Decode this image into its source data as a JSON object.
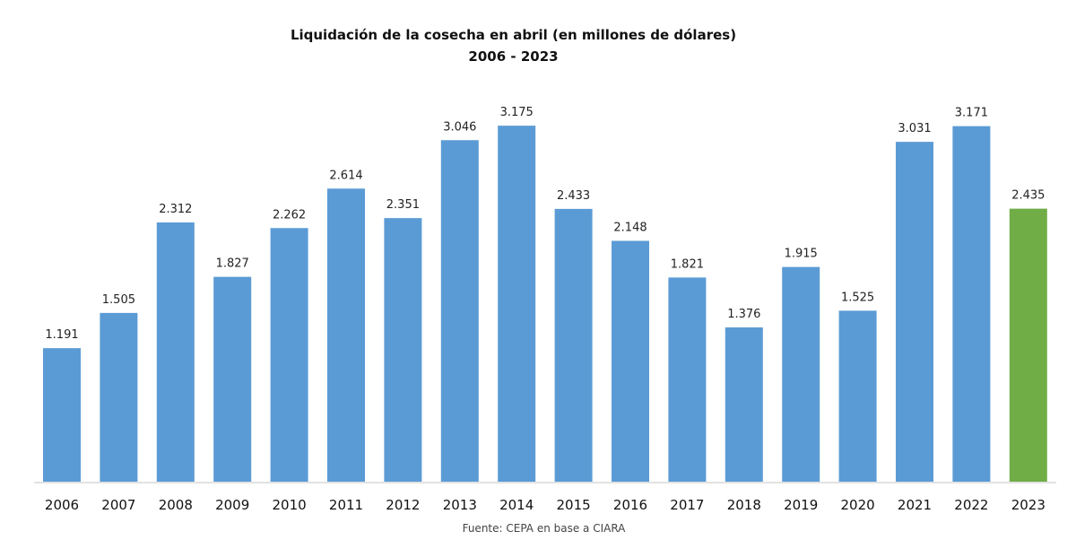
{
  "chart_data": {
    "type": "bar",
    "title": "Liquidación de la cosecha en abril (en millones de dólares)",
    "subtitle": "2006 - 2023",
    "xlabel": "",
    "ylabel": "",
    "ylim": [
      0,
      3.5
    ],
    "grid": false,
    "legend": "none",
    "categories": [
      "2006",
      "2007",
      "2008",
      "2009",
      "2010",
      "2011",
      "2012",
      "2013",
      "2014",
      "2015",
      "2016",
      "2017",
      "2018",
      "2019",
      "2020",
      "2021",
      "2022",
      "2023"
    ],
    "values": [
      1.191,
      1.505,
      2.312,
      1.827,
      2.262,
      2.614,
      2.351,
      3.046,
      3.175,
      2.433,
      2.148,
      1.821,
      1.376,
      1.915,
      1.525,
      3.031,
      3.171,
      2.435
    ],
    "data_labels": [
      "1.191",
      "1.505",
      "2.312",
      "1.827",
      "2.262",
      "2.614",
      "2.351",
      "3.046",
      "3.175",
      "2.433",
      "2.148",
      "1.821",
      "1.376",
      "1.915",
      "1.525",
      "3.031",
      "3.171",
      "2.435"
    ],
    "colors": {
      "default": "#5b9bd5",
      "highlight": "#70ad47"
    },
    "highlight_category": "2023",
    "source": "Fuente:  CEPA  en base a CIARA"
  }
}
